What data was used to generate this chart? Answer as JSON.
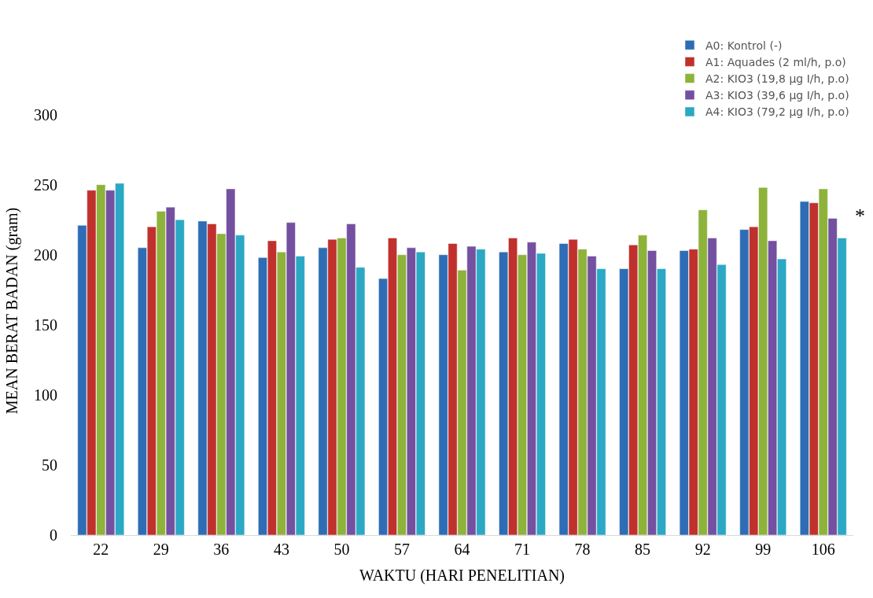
{
  "chart_data": {
    "type": "bar",
    "xlabel": "WAKTU (HARI PENELITIAN)",
    "ylabel": "MEAN BERAT BADAN (gram)",
    "categories": [
      "22",
      "29",
      "36",
      "43",
      "50",
      "57",
      "64",
      "71",
      "78",
      "85",
      "92",
      "99",
      "106"
    ],
    "series": [
      {
        "name": "A0: Kontrol (-)",
        "color": "#2e6db5",
        "values": [
          221,
          205,
          224,
          198,
          205,
          183,
          200,
          202,
          208,
          190,
          203,
          218,
          238
        ]
      },
      {
        "name": "A1: Aquades (2 ml/h, p.o)",
        "color": "#c0312e",
        "values": [
          246,
          220,
          222,
          210,
          211,
          212,
          208,
          212,
          211,
          207,
          204,
          220,
          237
        ]
      },
      {
        "name": "A2: KIO3 (19,8 µg I/h, p.o)",
        "color": "#8db33a",
        "values": [
          250,
          231,
          215,
          202,
          212,
          200,
          189,
          200,
          204,
          214,
          232,
          248,
          247
        ]
      },
      {
        "name": "A3: KIO3 (39,6 µg I/h, p.o)",
        "color": "#7450a0",
        "values": [
          246,
          234,
          247,
          223,
          222,
          205,
          206,
          209,
          199,
          203,
          212,
          210,
          226
        ]
      },
      {
        "name": "A4: KIO3 (79,2 µg I/h, p.o)",
        "color": "#2ba8c4",
        "values": [
          251,
          225,
          214,
          199,
          191,
          202,
          204,
          201,
          190,
          190,
          193,
          197,
          212
        ]
      }
    ],
    "ylim": [
      0,
      320
    ],
    "yticks": [
      0,
      50,
      100,
      150,
      200,
      250,
      300
    ],
    "legend": "top right",
    "annotations": [
      "*"
    ]
  }
}
